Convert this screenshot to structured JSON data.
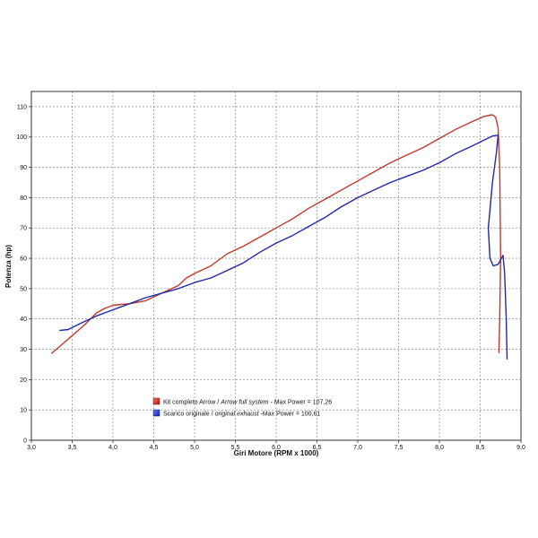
{
  "chart_data": {
    "type": "line",
    "title": "",
    "xlabel": "Giri Motore (RPM x 1000)",
    "ylabel": "Potenza (hp)",
    "xlim": [
      3.0,
      9.0
    ],
    "ylim": [
      0,
      115
    ],
    "xticks": [
      "3,0",
      "3,5",
      "4,0",
      "4,5",
      "5,0",
      "5,5",
      "6,0",
      "6,5",
      "7,0",
      "7,5",
      "8,0",
      "8,5",
      "9,0"
    ],
    "xtick_values": [
      3.0,
      3.5,
      4.0,
      4.5,
      5.0,
      5.5,
      6.0,
      6.5,
      7.0,
      7.5,
      8.0,
      8.5,
      9.0
    ],
    "yticks": [
      "0",
      "10",
      "20",
      "30",
      "40",
      "50",
      "60",
      "70",
      "80",
      "90",
      "100",
      "110"
    ],
    "ytick_values": [
      0,
      10,
      20,
      30,
      40,
      50,
      60,
      70,
      80,
      90,
      100,
      110
    ],
    "grid": true,
    "legend_position": "bottom-center",
    "series": [
      {
        "name": "Kit completo Arrow / Arrow full system - Max Power = 107,26",
        "legend_parts": [
          "Kit completo Arrow / ",
          "Arrow full system",
          " - Max Power = 107,26"
        ],
        "color": "#c0392b",
        "x": [
          3.25,
          3.35,
          3.5,
          3.65,
          3.8,
          3.9,
          4.0,
          4.1,
          4.2,
          4.4,
          4.6,
          4.8,
          4.9,
          5.0,
          5.2,
          5.4,
          5.6,
          5.8,
          6.0,
          6.2,
          6.4,
          6.6,
          6.8,
          7.0,
          7.2,
          7.4,
          7.6,
          7.8,
          8.0,
          8.2,
          8.4,
          8.55,
          8.65,
          8.69,
          8.72,
          8.74,
          8.75,
          8.74,
          8.73
        ],
        "y": [
          28.7,
          31,
          34.5,
          38,
          42,
          43.5,
          44.5,
          44.8,
          45,
          46,
          48.5,
          51,
          53.5,
          55,
          57.5,
          61.5,
          64,
          67,
          70,
          73,
          76.5,
          79.5,
          82.5,
          85.5,
          88.5,
          91.5,
          94,
          96.5,
          99.5,
          102.5,
          105,
          106.8,
          107.3,
          106.5,
          103,
          90,
          60,
          40,
          28.9
        ]
      },
      {
        "name": "Scarico originale / original exhaust -Max Power = 100,61",
        "legend_parts": [
          "Scarico originale / ",
          "original exhaust",
          " -Max Power = 100,61"
        ],
        "color": "#1f2aa8",
        "x": [
          3.35,
          3.45,
          3.6,
          3.8,
          4.0,
          4.2,
          4.4,
          4.6,
          4.8,
          5.0,
          5.2,
          5.4,
          5.6,
          5.8,
          6.0,
          6.2,
          6.4,
          6.6,
          6.8,
          7.0,
          7.2,
          7.4,
          7.6,
          7.8,
          8.0,
          8.2,
          8.4,
          8.55,
          8.65,
          8.72,
          8.7,
          8.65,
          8.6,
          8.62,
          8.66,
          8.72,
          8.78,
          8.8,
          8.82,
          8.83
        ],
        "y": [
          36.2,
          36.5,
          38.5,
          41,
          43,
          45,
          47,
          48.5,
          50,
          52,
          53.5,
          56,
          58.5,
          62,
          65,
          67.5,
          70.5,
          73.5,
          77,
          80,
          82.5,
          85,
          87,
          89,
          91.5,
          94.5,
          97,
          99,
          100.3,
          100.6,
          95,
          85,
          70,
          60,
          57.5,
          58,
          61,
          55,
          40,
          26.8
        ]
      }
    ]
  }
}
